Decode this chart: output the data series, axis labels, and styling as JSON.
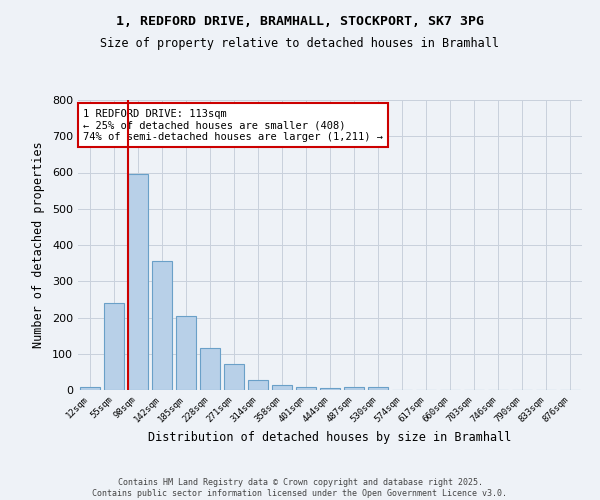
{
  "title_line1": "1, REDFORD DRIVE, BRAMHALL, STOCKPORT, SK7 3PG",
  "title_line2": "Size of property relative to detached houses in Bramhall",
  "xlabel": "Distribution of detached houses by size in Bramhall",
  "ylabel": "Number of detached properties",
  "bar_color": "#b8d0e8",
  "bar_edge_color": "#6aa0c8",
  "categories": [
    "12sqm",
    "55sqm",
    "98sqm",
    "142sqm",
    "185sqm",
    "228sqm",
    "271sqm",
    "314sqm",
    "358sqm",
    "401sqm",
    "444sqm",
    "487sqm",
    "530sqm",
    "574sqm",
    "617sqm",
    "660sqm",
    "703sqm",
    "746sqm",
    "790sqm",
    "833sqm",
    "876sqm"
  ],
  "values": [
    8,
    240,
    595,
    355,
    205,
    117,
    72,
    28,
    15,
    8,
    5,
    8,
    8,
    0,
    0,
    0,
    0,
    0,
    0,
    0,
    0
  ],
  "ylim": [
    0,
    800
  ],
  "yticks": [
    0,
    100,
    200,
    300,
    400,
    500,
    600,
    700,
    800
  ],
  "red_line_x": 1.57,
  "annotation_text": "1 REDFORD DRIVE: 113sqm\n← 25% of detached houses are smaller (408)\n74% of semi-detached houses are larger (1,211) →",
  "annotation_box_color": "#ffffff",
  "annotation_border_color": "#cc0000",
  "footer_line1": "Contains HM Land Registry data © Crown copyright and database right 2025.",
  "footer_line2": "Contains public sector information licensed under the Open Government Licence v3.0.",
  "background_color": "#eef2f7",
  "grid_color": "#c8d0dc"
}
